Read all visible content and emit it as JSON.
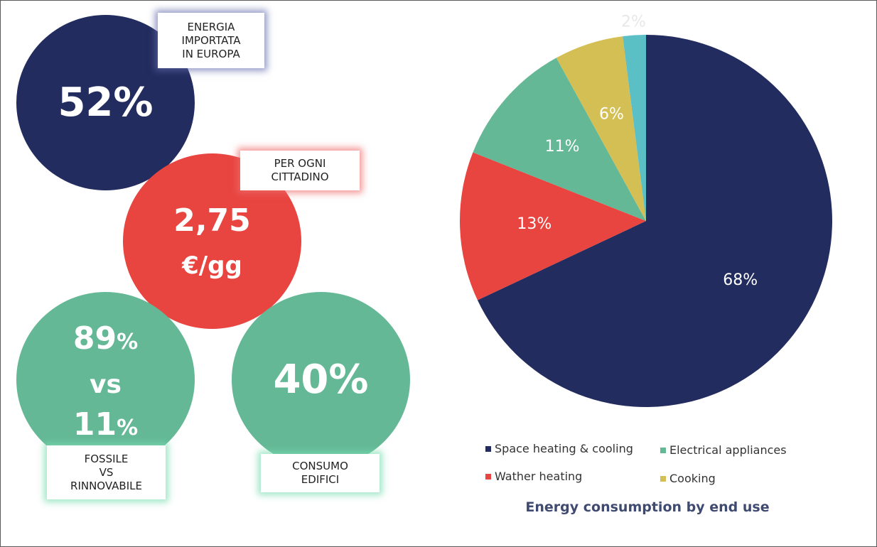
{
  "colors": {
    "navy": "#232c5e",
    "red": "#e84540",
    "green": "#64b896",
    "yellow": "#d4bf55",
    "teal": "#5bbfc6"
  },
  "infographic": {
    "imported": {
      "value": "52%",
      "label_lines": [
        "ENERGIA",
        "IMPORTATA",
        "IN EUROPA"
      ]
    },
    "per_citizen": {
      "value": "2,75",
      "unit": "€/gg",
      "label_lines": [
        "PER OGNI",
        "CITTADINO"
      ]
    },
    "fossil_vs_renewable": {
      "fossil_number": "89",
      "fossil_pct": "%",
      "vs": "vs",
      "renewable_number": "11",
      "renewable_pct": "%",
      "label_lines": [
        "FOSSILE",
        "VS",
        "RINNOVABILE"
      ]
    },
    "building_consumption": {
      "value": "40%",
      "label_lines": [
        "CONSUMO",
        "EDIFICI"
      ]
    }
  },
  "chart_data": {
    "type": "pie",
    "title": "Energy consumption by end use",
    "start_angle_deg": 0,
    "direction": "clockwise",
    "legend_position": "bottom",
    "slices": [
      {
        "name": "Space heating & cooling",
        "value": 68,
        "label": "68%",
        "color": "#232c5e",
        "label_color": "#ffffff"
      },
      {
        "name": "Wather heating",
        "value": 13,
        "label": "13%",
        "color": "#e84540",
        "label_color": "#ffffff"
      },
      {
        "name": "Electrical appliances",
        "value": 11,
        "label": "11%",
        "color": "#64b896",
        "label_color": "#ffffff"
      },
      {
        "name": "Cooking",
        "value": 6,
        "label": "6%",
        "color": "#d4bf55",
        "label_color": "#ffffff"
      },
      {
        "name": "",
        "value": 2,
        "label": "2%",
        "color": "#5bbfc6",
        "label_color": "#e8e8e8"
      }
    ],
    "legend": [
      {
        "name": "Space heating & cooling",
        "color": "#232c5e"
      },
      {
        "name": "Electrical appliances",
        "color": "#64b896"
      },
      {
        "name": "Wather heating",
        "color": "#e84540"
      },
      {
        "name": "Cooking",
        "color": "#d4bf55"
      }
    ]
  }
}
